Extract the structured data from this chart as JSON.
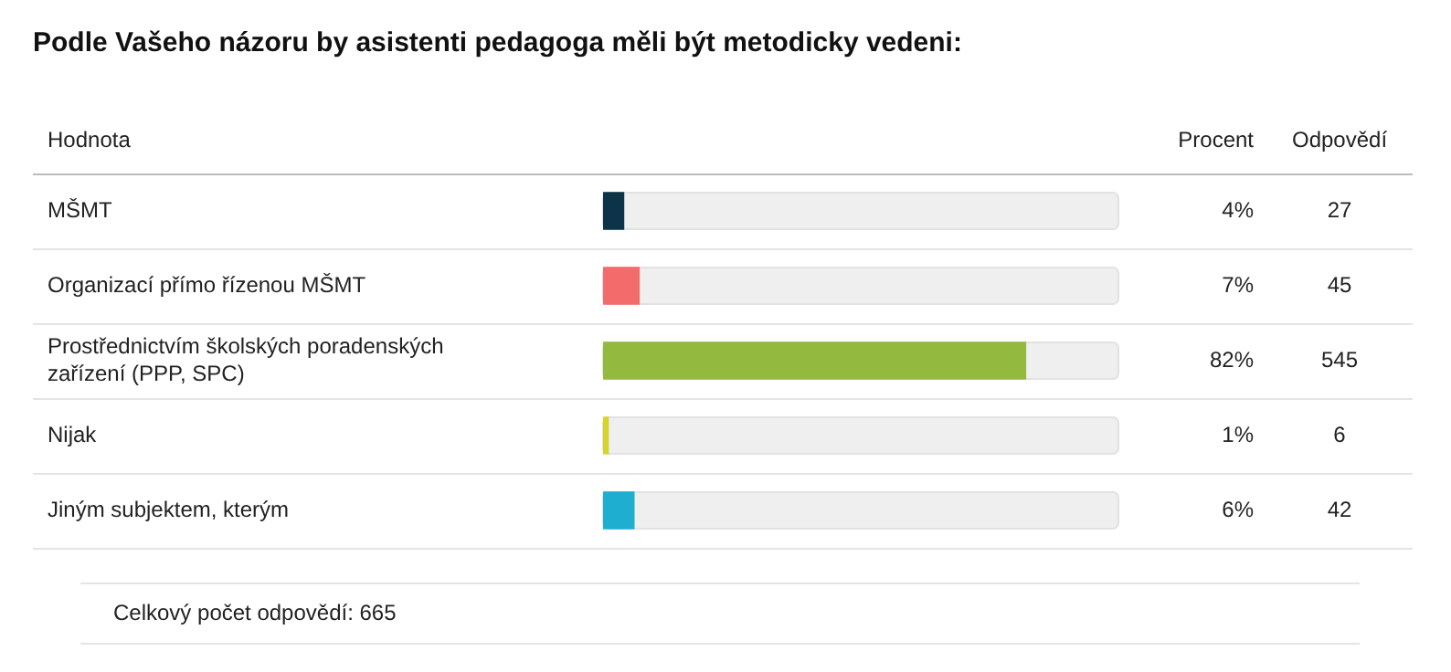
{
  "chart_data": {
    "type": "bar",
    "orientation": "horizontal",
    "title": "Podle Vašeho názoru by asistenti pedagoga měli být metodicky vedeni:",
    "ylabel": "Hodnota",
    "categories": [
      "MŠMT",
      "Organizací přímo řízenou MŠMT",
      "Prostřednictvím školských poradenských zařízení (PPP, SPC)",
      "Nijak",
      "Jiným subjektem, kterým"
    ],
    "values": [
      4,
      7,
      82,
      1,
      6
    ],
    "colors": [
      "#0d3349",
      "#f36b6b",
      "#94b93f",
      "#d4d42a",
      "#1eafd0"
    ],
    "value_labels": [
      "4%",
      "7%",
      "82%",
      "1%",
      "6%"
    ],
    "xlim": [
      0,
      100
    ],
    "legend": false,
    "annotations": [
      "Procent",
      "Odpovědí",
      "Celkový počet odpovědí: 665",
      "27",
      "45",
      "545",
      "6",
      "42"
    ]
  }
}
